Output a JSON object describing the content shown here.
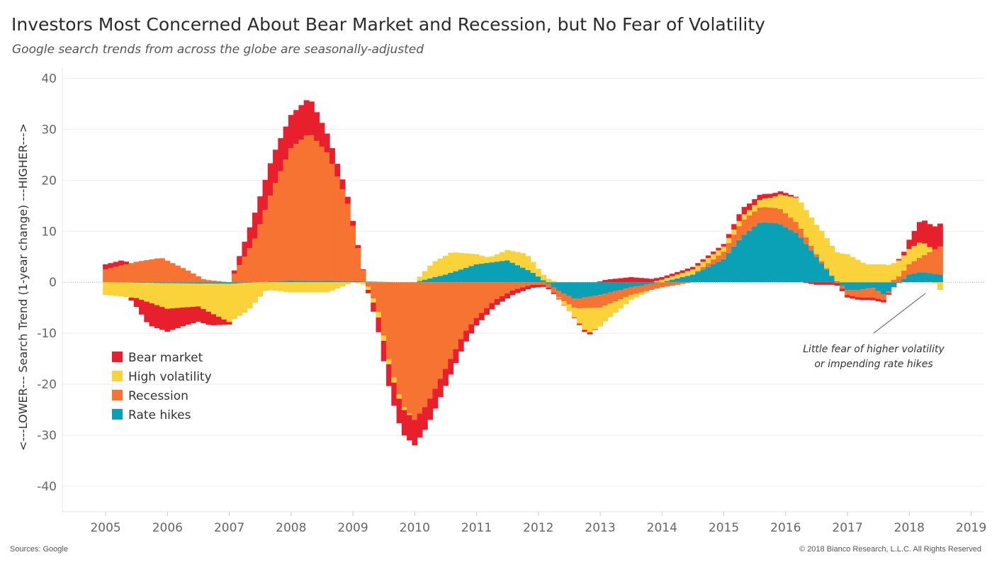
{
  "header": {
    "title": "Investors Most Concerned About Bear Market and Recession, but No Fear of Volatility",
    "subtitle": "Google search trends from across the globe are seasonally-adjusted"
  },
  "footer": {
    "source": "Sources: Google",
    "copyright": "© 2018 Bianco Research, L.L.C. All Rights Reserved"
  },
  "chart_data": {
    "type": "area",
    "stacked": true,
    "ylabel": "<---LOWER--- Search Trend (1-year change) ---HIGHER--->",
    "xlabel": "",
    "x_ticks": [
      "2005",
      "2006",
      "2007",
      "2008",
      "2009",
      "2010",
      "2011",
      "2012",
      "2013",
      "2014",
      "2015",
      "2016",
      "2017",
      "2018",
      "2019"
    ],
    "y_ticks": [
      40,
      30,
      20,
      10,
      0,
      -10,
      -20,
      -30,
      -40
    ],
    "xlim": [
      2004.3,
      2019.2
    ],
    "ylim": [
      -45,
      42
    ],
    "x_range": [
      2005.0,
      2018.5
    ],
    "grid": "horizontal",
    "legend_position": "left",
    "annotation": {
      "lines": [
        "Little fear of higher volatility",
        "or impending rate hikes"
      ]
    },
    "series": [
      {
        "name": "Rate hikes",
        "color": "#0aa0b5",
        "x": [
          2005.0,
          2006.0,
          2007.0,
          2008.0,
          2009.0,
          2009.7,
          2010.0,
          2010.5,
          2011.0,
          2011.5,
          2011.9,
          2012.3,
          2012.6,
          2013.0,
          2013.5,
          2014.0,
          2014.5,
          2015.0,
          2015.3,
          2015.6,
          2015.9,
          2016.2,
          2016.5,
          2016.8,
          2017.0,
          2017.2,
          2017.4,
          2017.6,
          2017.8,
          2018.0,
          2018.2,
          2018.5
        ],
        "values": [
          0.0,
          -0.2,
          -0.3,
          0.3,
          0.2,
          0.0,
          0.0,
          1.5,
          3.5,
          4.3,
          2.0,
          -1.5,
          -3.3,
          -2.5,
          -1.0,
          0.0,
          1.5,
          4.5,
          9.0,
          11.8,
          11.5,
          9.5,
          5.0,
          0.5,
          -1.5,
          -1.5,
          -1.0,
          -2.5,
          -0.5,
          1.5,
          2.0,
          1.5
        ]
      },
      {
        "name": "Recession",
        "color": "#f77332",
        "x": [
          2005.0,
          2005.5,
          2005.9,
          2006.3,
          2006.6,
          2007.0,
          2007.4,
          2007.7,
          2008.0,
          2008.3,
          2008.6,
          2008.9,
          2009.2,
          2009.4,
          2009.6,
          2009.8,
          2010.0,
          2010.2,
          2010.5,
          2010.8,
          2011.0,
          2011.3,
          2011.6,
          2011.9,
          2012.1,
          2012.4,
          2012.7,
          2013.0,
          2013.5,
          2014.0,
          2014.5,
          2015.0,
          2015.3,
          2015.6,
          2015.9,
          2016.2,
          2016.5,
          2016.8,
          2017.0,
          2017.2,
          2017.4,
          2017.6,
          2017.8,
          2018.0,
          2018.2,
          2018.5
        ],
        "values": [
          2.5,
          4.0,
          4.8,
          2.5,
          0.5,
          0.0,
          8.0,
          18.0,
          26.0,
          29.0,
          25.0,
          16.0,
          0.5,
          -5.0,
          -16.0,
          -24.0,
          -27.0,
          -24.0,
          -17.0,
          -10.0,
          -7.0,
          -3.5,
          -1.5,
          -0.5,
          -0.5,
          -1.5,
          -2.0,
          -2.5,
          -1.5,
          -1.0,
          0.0,
          1.5,
          3.0,
          3.0,
          3.0,
          2.0,
          0.5,
          0.0,
          -1.0,
          -1.5,
          -2.0,
          -1.0,
          1.0,
          2.0,
          3.0,
          5.5
        ]
      },
      {
        "name": "High volatility",
        "color": "#fad33b",
        "x": [
          2005.0,
          2005.5,
          2006.0,
          2006.5,
          2007.0,
          2007.3,
          2007.6,
          2008.0,
          2008.3,
          2008.6,
          2009.0,
          2009.4,
          2009.7,
          2010.0,
          2010.3,
          2010.6,
          2010.9,
          2011.2,
          2011.5,
          2011.8,
          2012.0,
          2012.3,
          2012.6,
          2012.8,
          2013.1,
          2013.5,
          2014.0,
          2014.5,
          2015.0,
          2015.4,
          2015.8,
          2016.2,
          2016.6,
          2017.0,
          2017.3,
          2017.6,
          2017.9,
          2018.2,
          2018.4,
          2018.5
        ],
        "values": [
          -2.5,
          -3.0,
          -5.0,
          -4.5,
          -7.5,
          -5.5,
          -1.5,
          -2.0,
          -2.0,
          -2.0,
          0.0,
          -1.0,
          -1.0,
          0.0,
          3.0,
          4.0,
          2.5,
          1.0,
          2.0,
          3.0,
          1.5,
          0.0,
          -2.0,
          -5.0,
          -3.0,
          -1.0,
          0.5,
          1.0,
          1.0,
          1.0,
          2.0,
          5.0,
          6.0,
          5.5,
          3.5,
          3.5,
          3.0,
          3.0,
          0.0,
          -1.5
        ]
      },
      {
        "name": "Bear market",
        "color": "#e8202e",
        "x": [
          2005.0,
          2005.3,
          2005.7,
          2006.0,
          2006.3,
          2006.7,
          2007.0,
          2007.4,
          2007.7,
          2008.0,
          2008.3,
          2008.6,
          2008.9,
          2009.2,
          2009.5,
          2009.8,
          2010.0,
          2010.3,
          2010.6,
          2011.0,
          2011.5,
          2012.0,
          2012.5,
          2012.8,
          2013.1,
          2013.5,
          2014.0,
          2014.5,
          2015.0,
          2015.3,
          2015.6,
          2016.0,
          2016.5,
          2017.0,
          2017.3,
          2017.6,
          2017.9,
          2018.2,
          2018.5
        ],
        "values": [
          1.0,
          1.0,
          -4.5,
          -4.5,
          -3.5,
          -2.5,
          -0.5,
          5.0,
          6.5,
          6.5,
          7.0,
          3.5,
          1.5,
          0.0,
          -4.0,
          -5.0,
          -5.0,
          -4.0,
          -3.0,
          -1.5,
          -1.0,
          -0.5,
          0.0,
          -0.5,
          0.5,
          1.0,
          0.5,
          0.5,
          0.5,
          1.5,
          1.0,
          0.5,
          -0.5,
          -0.5,
          -0.5,
          -0.5,
          0.5,
          4.5,
          4.5
        ]
      }
    ]
  }
}
